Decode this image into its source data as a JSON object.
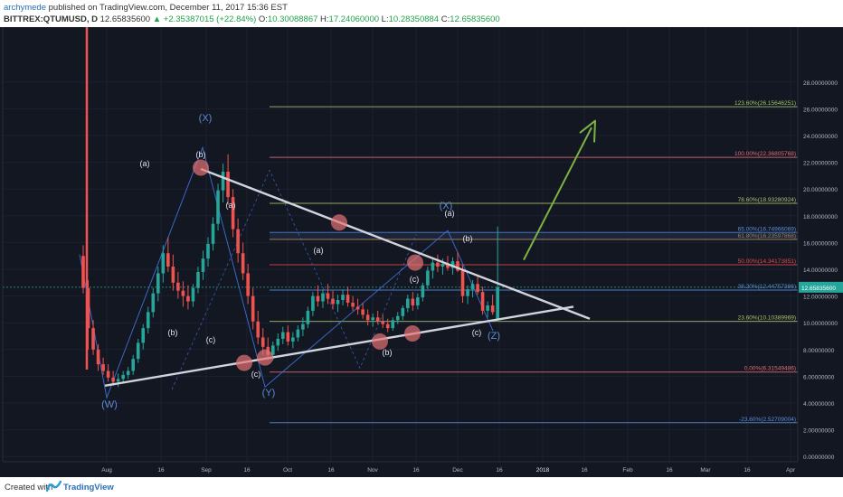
{
  "header": {
    "author": "archymede",
    "published_text": "published on TradingView.com, December 11, 2017 15:36 EST",
    "symbol": "BITTREX:QTUMUSD, D",
    "price": "12.65835600",
    "change": "▲ +2.35387015 (+22.84%)",
    "o_label": "O:",
    "o_value": "10.30088867",
    "h_label": "H:",
    "h_value": "17.24060000",
    "l_label": "L:",
    "l_value": "10.28350884",
    "c_label": "C:",
    "c_value": "12.65835600"
  },
  "footer": {
    "created_with": "Created with",
    "brand": "TradingView"
  },
  "colors": {
    "background": "#131722",
    "up": "#26a69a",
    "down": "#ef5350",
    "trendline": "#d1d4dc",
    "wave": "#3f6fd8",
    "arrow": "#7cb342",
    "marker": "#e57373"
  },
  "chart_data": {
    "type": "candlestick",
    "symbol": "BITTREX:QTUMUSD",
    "interval": "D",
    "x_ticks": [
      "Aug",
      "16",
      "Sep",
      "16",
      "Oct",
      "16",
      "Nov",
      "16",
      "Dec",
      "16",
      "2018",
      "16",
      "Feb",
      "16",
      "Mar",
      "16",
      "Apr"
    ],
    "y_ticks": [
      "0.00000000",
      "2.00000000",
      "4.00000000",
      "6.00000000",
      "8.00000000",
      "10.00000000",
      "12.00000000",
      "14.00000000",
      "16.00000000",
      "18.00000000",
      "20.00000000",
      "22.00000000",
      "24.00000000",
      "26.00000000",
      "28.00000000"
    ],
    "ylim": [
      0,
      29
    ],
    "last_price_label": "12.65835600",
    "fib_levels": [
      {
        "label": "123.60%(26.15646251)",
        "value": 26.15646251,
        "color": "#a5c36b"
      },
      {
        "label": "100.00%(22.36805768)",
        "value": 22.36805768,
        "color": "#e06c75"
      },
      {
        "label": "78.60%(18.93280924)",
        "value": 18.93280924,
        "color": "#a5c36b"
      },
      {
        "label": "65.00%(16.74966069)",
        "value": 16.74966069,
        "color": "#5b8dd9"
      },
      {
        "label": "61.80%(16.23597868)",
        "value": 16.23597868,
        "color": "#d4a857"
      },
      {
        "label": "50.00%(14.34173851)",
        "value": 14.34173851,
        "color": "#e04848"
      },
      {
        "label": "38.20%(12.44757386)",
        "value": 12.44757386,
        "color": "#5b8dd9"
      },
      {
        "label": "23.60%(10.10389969)",
        "value": 10.10389969,
        "color": "#a5c36b"
      },
      {
        "label": "0.00%(6.31549486)",
        "value": 6.31549486,
        "color": "#e06c75"
      },
      {
        "label": "-23.60%(2.52709004)",
        "value": 2.52709004,
        "color": "#5b8dd9"
      }
    ],
    "wave_labels": [
      "(W)",
      "(X)",
      "(Y)",
      "(X)",
      "(Z)",
      "(a)",
      "(b)",
      "(c)",
      "(a)",
      "(b)",
      "(c)",
      "(a)",
      "(b)",
      "(c)",
      "(a)",
      "(b)",
      "(c)",
      "(a)",
      "(b)",
      "(c)"
    ],
    "series": [
      {
        "name": "QTUMUSD",
        "ohlc": [
          [
            15.0,
            15.8,
            12.2,
            12.6
          ],
          [
            12.6,
            13.2,
            8.0,
            9.6
          ],
          [
            9.6,
            10.2,
            7.6,
            8.0
          ],
          [
            8.0,
            8.4,
            6.4,
            6.9
          ],
          [
            6.9,
            7.4,
            6.1,
            6.4
          ],
          [
            6.4,
            6.9,
            5.6,
            5.9
          ],
          [
            5.9,
            6.4,
            5.3,
            5.6
          ],
          [
            5.6,
            6.2,
            5.2,
            5.8
          ],
          [
            5.8,
            6.4,
            5.5,
            6.1
          ],
          [
            6.1,
            6.7,
            5.8,
            6.4
          ],
          [
            6.4,
            7.6,
            6.1,
            7.3
          ],
          [
            7.3,
            8.8,
            7.0,
            8.5
          ],
          [
            8.5,
            9.9,
            8.0,
            9.6
          ],
          [
            9.6,
            11.2,
            9.2,
            10.8
          ],
          [
            10.8,
            12.6,
            10.4,
            12.2
          ],
          [
            12.2,
            14.2,
            11.6,
            13.7
          ],
          [
            13.7,
            15.8,
            13.0,
            15.2
          ],
          [
            15.2,
            16.4,
            13.8,
            14.2
          ],
          [
            14.2,
            15.1,
            12.4,
            13.0
          ],
          [
            13.0,
            13.8,
            11.8,
            12.4
          ],
          [
            12.4,
            13.1,
            11.2,
            12.0
          ],
          [
            12.0,
            12.8,
            11.0,
            11.6
          ],
          [
            11.6,
            12.9,
            11.2,
            12.6
          ],
          [
            12.6,
            14.2,
            12.2,
            13.8
          ],
          [
            13.8,
            15.4,
            13.2,
            14.8
          ],
          [
            14.8,
            16.4,
            14.2,
            15.9
          ],
          [
            15.9,
            17.9,
            15.4,
            17.4
          ],
          [
            17.4,
            20.4,
            16.9,
            19.9
          ],
          [
            19.9,
            21.9,
            19.0,
            21.3
          ],
          [
            21.3,
            22.6,
            18.8,
            19.4
          ],
          [
            19.4,
            20.0,
            16.4,
            17.0
          ],
          [
            17.0,
            17.8,
            14.5,
            15.2
          ],
          [
            15.2,
            16.0,
            13.2,
            13.7
          ],
          [
            13.7,
            14.4,
            11.4,
            12.0
          ],
          [
            12.0,
            12.6,
            9.5,
            10.1
          ],
          [
            10.1,
            10.9,
            8.4,
            8.9
          ],
          [
            8.9,
            9.6,
            7.6,
            8.2
          ],
          [
            8.2,
            8.9,
            7.2,
            7.6
          ],
          [
            7.6,
            8.6,
            7.2,
            8.3
          ],
          [
            8.3,
            9.2,
            7.9,
            8.8
          ],
          [
            8.8,
            9.7,
            8.4,
            9.3
          ],
          [
            9.3,
            9.8,
            8.3,
            8.6
          ],
          [
            8.6,
            9.3,
            8.1,
            8.9
          ],
          [
            8.9,
            9.8,
            8.6,
            9.5
          ],
          [
            9.5,
            10.4,
            9.0,
            9.9
          ],
          [
            9.9,
            11.2,
            9.6,
            10.9
          ],
          [
            10.9,
            12.3,
            10.5,
            12.0
          ],
          [
            12.0,
            12.8,
            11.2,
            11.6
          ],
          [
            11.6,
            12.5,
            11.1,
            12.2
          ],
          [
            12.2,
            12.9,
            11.4,
            11.8
          ],
          [
            11.8,
            12.4,
            11.0,
            11.4
          ],
          [
            11.4,
            12.1,
            10.8,
            11.7
          ],
          [
            11.7,
            12.5,
            11.3,
            12.1
          ],
          [
            12.1,
            12.7,
            11.2,
            11.5
          ],
          [
            11.5,
            12.0,
            10.9,
            11.2
          ],
          [
            11.2,
            11.8,
            10.6,
            11.0
          ],
          [
            11.0,
            11.5,
            10.3,
            10.6
          ],
          [
            10.6,
            11.0,
            9.8,
            10.2
          ],
          [
            10.2,
            10.7,
            9.7,
            10.4
          ],
          [
            10.4,
            10.9,
            9.9,
            10.1
          ],
          [
            10.1,
            10.6,
            9.6,
            9.9
          ],
          [
            9.9,
            10.3,
            9.3,
            9.6
          ],
          [
            9.6,
            10.4,
            9.4,
            10.2
          ],
          [
            10.2,
            10.8,
            9.9,
            10.5
          ],
          [
            10.5,
            11.3,
            10.2,
            11.1
          ],
          [
            11.1,
            12.1,
            10.8,
            11.8
          ],
          [
            11.8,
            12.3,
            10.9,
            11.3
          ],
          [
            11.3,
            12.2,
            11.0,
            11.9
          ],
          [
            11.9,
            13.0,
            11.6,
            12.8
          ],
          [
            12.8,
            14.2,
            12.5,
            13.9
          ],
          [
            13.9,
            14.9,
            13.3,
            14.5
          ],
          [
            14.5,
            15.1,
            13.8,
            14.2
          ],
          [
            14.2,
            14.8,
            13.6,
            14.4
          ],
          [
            14.4,
            15.0,
            13.9,
            14.1
          ],
          [
            14.1,
            14.9,
            13.6,
            14.6
          ],
          [
            14.6,
            15.3,
            13.8,
            13.9
          ],
          [
            13.9,
            14.3,
            11.5,
            12.0
          ],
          [
            12.0,
            12.8,
            11.4,
            12.5
          ],
          [
            12.5,
            13.2,
            11.9,
            12.9
          ],
          [
            12.9,
            13.6,
            12.1,
            12.3
          ],
          [
            12.3,
            12.7,
            10.6,
            10.9
          ],
          [
            10.9,
            11.6,
            10.4,
            11.3
          ],
          [
            11.3,
            12.1,
            10.6,
            10.8
          ],
          [
            10.3,
            17.2,
            10.3,
            12.66
          ]
        ]
      }
    ]
  }
}
